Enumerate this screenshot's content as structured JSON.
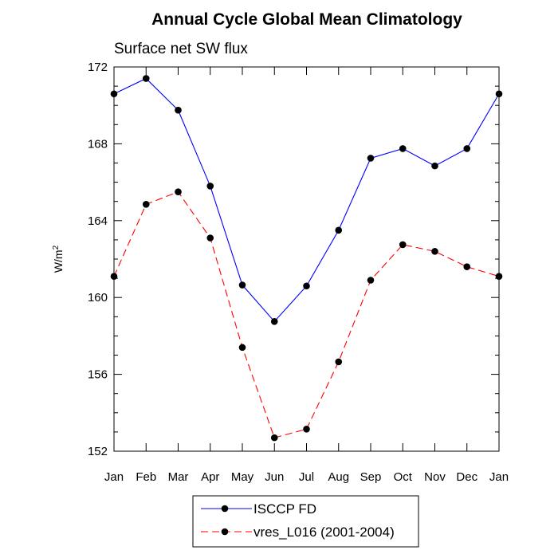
{
  "chart_data": {
    "type": "line",
    "title": "Annual Cycle Global Mean Climatology",
    "subtitle": "Surface net SW flux",
    "xlabel": "",
    "ylabel_base": "W/m",
    "ylabel_sup": "2",
    "categories": [
      "Jan",
      "Feb",
      "Mar",
      "Apr",
      "May",
      "Jun",
      "Jul",
      "Aug",
      "Sep",
      "Oct",
      "Nov",
      "Dec",
      "Jan"
    ],
    "ylim": [
      152,
      172
    ],
    "yticks": [
      "152",
      "156",
      "160",
      "164",
      "168",
      "172"
    ],
    "grid": false,
    "legend_position": "bottom-center",
    "series": [
      {
        "name": "ISCCP FD",
        "color": "#0000ff",
        "dash": "solid",
        "values": [
          170.6,
          171.4,
          169.75,
          165.8,
          160.65,
          158.75,
          160.6,
          163.5,
          167.25,
          167.75,
          166.85,
          167.75,
          170.6
        ]
      },
      {
        "name": "vres_L016 (2001-2004)",
        "color": "#ff0000",
        "dash": "dashed",
        "values": [
          161.1,
          164.85,
          165.5,
          163.1,
          157.4,
          152.7,
          153.15,
          156.65,
          160.9,
          162.75,
          162.4,
          161.6,
          161.1
        ]
      }
    ]
  }
}
